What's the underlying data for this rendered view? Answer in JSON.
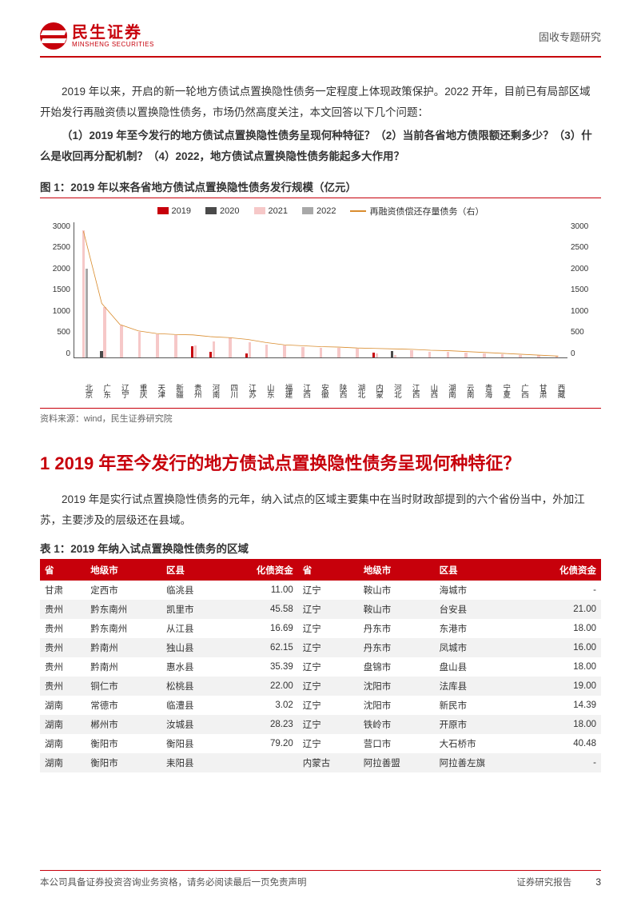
{
  "header": {
    "logo_cn": "民生证券",
    "logo_en": "MINSHENG SECURITIES",
    "right": "固收专题研究"
  },
  "paragraphs": {
    "p1": "2019 年以来，开启的新一轮地方债试点置换隐性债务一定程度上体现政策保护。2022 开年，目前已有局部区域开始发行再融资债以置换隐性债务，市场仍然高度关注，本文回答以下几个问题：",
    "p2": "（1）2019 年至今发行的地方债试点置换隐性债务呈现何种特征？（2）当前各省地方债限额还剩多少？（3）什么是收回再分配机制？（4）2022，地方债试点置换隐性债务能起多大作用？",
    "p3": "2019 年是实行试点置换隐性债务的元年，纳入试点的区域主要集中在当时财政部提到的六个省份当中，外加江苏，主要涉及的层级还在县域。"
  },
  "section_title": "1 2019 年至今发行的地方债试点置换隐性债务呈现何种特征？",
  "figure1": {
    "title": "图 1：2019 年以来各省地方债试点置换隐性债务发行规模（亿元）",
    "legend": [
      {
        "label": "2019",
        "color": "#c7000b",
        "type": "box"
      },
      {
        "label": "2020",
        "color": "#4a4a4a",
        "type": "box"
      },
      {
        "label": "2021",
        "color": "#f6c8c8",
        "type": "box"
      },
      {
        "label": "2022",
        "color": "#a8a8a8",
        "type": "box"
      },
      {
        "label": "再融资债偿还存量债务（右）",
        "color": "#d98c2e",
        "type": "line"
      }
    ],
    "y_left": {
      "max": 3000,
      "step": 500,
      "ticks": [
        "3000",
        "2500",
        "2000",
        "1500",
        "1000",
        "500",
        "0"
      ]
    },
    "y_right": {
      "max": 3000,
      "step": 500,
      "ticks": [
        "3000",
        "2500",
        "2000",
        "1500",
        "1000",
        "500",
        "0"
      ]
    },
    "categories": [
      "北京",
      "广东",
      "辽宁",
      "重庆",
      "天津",
      "新疆",
      "贵州",
      "河南",
      "四川",
      "江苏",
      "山东",
      "福建",
      "江西",
      "安徽",
      "陕西",
      "湖北",
      "内蒙",
      "河北",
      "江西",
      "山西",
      "湖南",
      "云南",
      "青海",
      "宁夏",
      "广西",
      "甘肃",
      "西藏"
    ],
    "series": {
      "2019": [
        0,
        0,
        0,
        0,
        0,
        0,
        240,
        120,
        0,
        80,
        0,
        0,
        0,
        0,
        0,
        0,
        100,
        0,
        0,
        0,
        0,
        0,
        0,
        0,
        0,
        0,
        0
      ],
      "2020": [
        0,
        130,
        0,
        0,
        0,
        0,
        0,
        0,
        0,
        0,
        0,
        0,
        0,
        0,
        0,
        0,
        0,
        140,
        0,
        0,
        0,
        0,
        0,
        0,
        0,
        0,
        0
      ],
      "2021": [
        2800,
        1100,
        700,
        560,
        500,
        490,
        260,
        340,
        430,
        320,
        280,
        260,
        220,
        210,
        200,
        190,
        80,
        40,
        160,
        110,
        120,
        100,
        80,
        60,
        50,
        40,
        20
      ],
      "2022": [
        1950,
        0,
        0,
        0,
        0,
        0,
        0,
        0,
        0,
        0,
        0,
        0,
        0,
        0,
        0,
        0,
        0,
        0,
        0,
        0,
        0,
        0,
        0,
        0,
        0,
        0,
        0
      ]
    },
    "line": [
      2800,
      1200,
      730,
      590,
      530,
      510,
      500,
      460,
      440,
      400,
      330,
      280,
      260,
      240,
      230,
      210,
      200,
      190,
      180,
      160,
      150,
      130,
      110,
      90,
      70,
      50,
      30
    ],
    "source": "资料来源：wind，民生证券研究院",
    "background_color": "#ffffff",
    "axis_color": "#555555",
    "label_fontsize": 10
  },
  "table1": {
    "title": "表 1：2019 年纳入试点置换隐性债务的区域",
    "columns": [
      "省",
      "地级市",
      "区县",
      "化债资金",
      "省",
      "地级市",
      "区县",
      "化债资金"
    ],
    "rows": [
      [
        "甘肃",
        "定西市",
        "临洮县",
        "11.00",
        "辽宁",
        "鞍山市",
        "海城市",
        "-"
      ],
      [
        "贵州",
        "黔东南州",
        "凯里市",
        "45.58",
        "辽宁",
        "鞍山市",
        "台安县",
        "21.00"
      ],
      [
        "贵州",
        "黔东南州",
        "从江县",
        "16.69",
        "辽宁",
        "丹东市",
        "东港市",
        "18.00"
      ],
      [
        "贵州",
        "黔南州",
        "独山县",
        "62.15",
        "辽宁",
        "丹东市",
        "凤城市",
        "16.00"
      ],
      [
        "贵州",
        "黔南州",
        "惠水县",
        "35.39",
        "辽宁",
        "盘锦市",
        "盘山县",
        "18.00"
      ],
      [
        "贵州",
        "铜仁市",
        "松桃县",
        "22.00",
        "辽宁",
        "沈阳市",
        "法库县",
        "19.00"
      ],
      [
        "湖南",
        "常德市",
        "临澧县",
        "3.02",
        "辽宁",
        "沈阳市",
        "新民市",
        "14.39"
      ],
      [
        "湖南",
        "郴州市",
        "汝城县",
        "28.23",
        "辽宁",
        "铁岭市",
        "开原市",
        "18.00"
      ],
      [
        "湖南",
        "衡阳市",
        "衡阳县",
        "79.20",
        "辽宁",
        "营口市",
        "大石桥市",
        "40.48"
      ],
      [
        "湖南",
        "衡阳市",
        "耒阳县",
        "",
        "内蒙古",
        "阿拉善盟",
        "阿拉善左旗",
        "-"
      ]
    ]
  },
  "footer": {
    "left": "本公司具备证券投资咨询业务资格，请务必阅读最后一页免责声明",
    "right_label": "证券研究报告",
    "page": "3"
  }
}
